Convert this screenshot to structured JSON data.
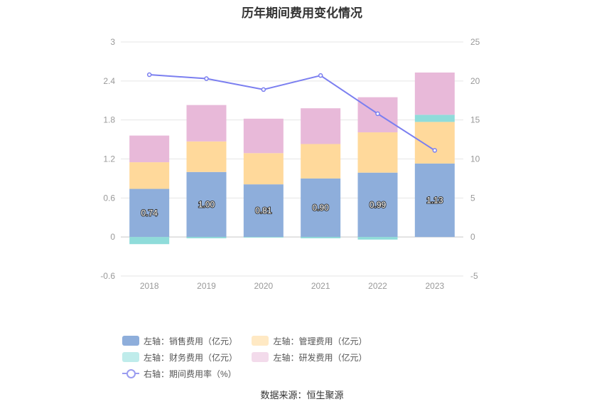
{
  "chart_data": {
    "type": "bar",
    "title": "历年期间费用变化情况",
    "categories": [
      "2018",
      "2019",
      "2020",
      "2021",
      "2022",
      "2023"
    ],
    "left_axis": {
      "ticks": [
        "3",
        "2.4",
        "1.8",
        "1.2",
        "0.6",
        "0",
        "-0.6"
      ],
      "ylim": [
        -0.6,
        3
      ]
    },
    "right_axis": {
      "ticks": [
        "25",
        "20",
        "15",
        "10",
        "5",
        "0",
        "-5"
      ],
      "ylim": [
        -5,
        25
      ]
    },
    "series": [
      {
        "name": "左轴：销售费用（亿元）",
        "kind": "bar",
        "color": "#8eaedb",
        "values": [
          0.74,
          1.0,
          0.81,
          0.9,
          0.99,
          1.13
        ],
        "labels": [
          "0.74",
          "1.00",
          "0.81",
          "0.90",
          "0.99",
          "1.13"
        ]
      },
      {
        "name": "左轴：管理费用（亿元）",
        "kind": "bar",
        "color": "#ffd99b",
        "values": [
          0.41,
          0.47,
          0.48,
          0.53,
          0.62,
          0.64
        ]
      },
      {
        "name": "左轴：财务费用（亿元）",
        "kind": "bar",
        "color": "#8fdcda",
        "values": [
          -0.11,
          -0.02,
          -0.01,
          -0.02,
          -0.04,
          0.11
        ]
      },
      {
        "name": "左轴：研发费用（亿元）",
        "kind": "bar",
        "color": "#e8b9d9",
        "values": [
          0.41,
          0.56,
          0.53,
          0.55,
          0.54,
          0.65
        ]
      },
      {
        "name": "右轴：期间费用率（%）",
        "kind": "line",
        "color": "#7b7ff0",
        "values": [
          20.8,
          20.3,
          18.9,
          20.7,
          15.8,
          11.1
        ]
      }
    ],
    "grid": true,
    "legend": "bottom"
  },
  "source": "数据来源：恒生聚源"
}
